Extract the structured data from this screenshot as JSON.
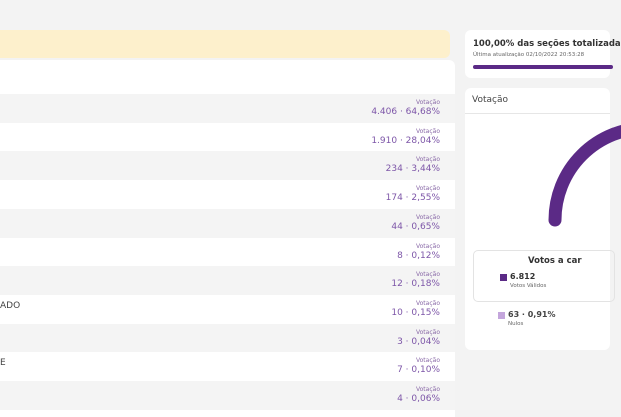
{
  "progress": {
    "title": "100,00% das seções totalizada",
    "updated": "Última atualização 02/10/2022 20:53:28"
  },
  "rows": [
    {
      "caption": "Votação",
      "result": "4.406 · 64,68%"
    },
    {
      "caption": "Votação",
      "result": "1.910 · 28,04%"
    },
    {
      "caption": "Votação",
      "result": "234 · 3,44%"
    },
    {
      "caption": "Votação",
      "result": "174 · 2,55%"
    },
    {
      "caption": "Votação",
      "result": "44 · 0,65%"
    },
    {
      "caption": "Votação",
      "result": "8 · 0,12%"
    },
    {
      "caption": "Votação",
      "result": "12 · 0,18%"
    },
    {
      "name": "ADO",
      "caption": "Votação",
      "result": "10 · 0,15%"
    },
    {
      "caption": "Votação",
      "result": "3 · 0,04%"
    },
    {
      "name": "E",
      "caption": "Votação",
      "result": "7 · 0,10%"
    },
    {
      "caption": "Votação",
      "result": "4 · 0,06%"
    }
  ],
  "votes_card": {
    "title": "Votação",
    "box_title": "Votos a car",
    "valid_value": "6.812",
    "valid_label": "Votos Válidos",
    "null_value": "63 · 0,91%",
    "null_label": "Nulos"
  }
}
